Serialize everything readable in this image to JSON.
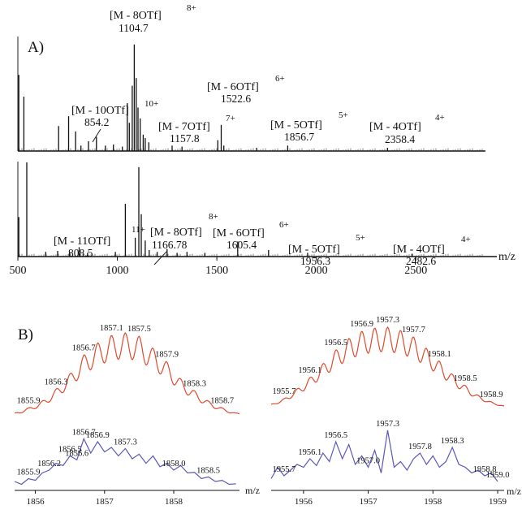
{
  "figure": {
    "panel_a_label": "A)",
    "panel_b_label": "B)"
  },
  "chart_data": [
    {
      "type": "line",
      "panel": "A-top",
      "xlim": [
        500,
        2850
      ],
      "annotations": [
        {
          "ion": "[M - 8OTf]",
          "charge": "8+",
          "value": "1104.7"
        },
        {
          "ion": "[M - 6OTf]",
          "charge": "6+",
          "value": "1522.6"
        },
        {
          "ion": "[M - 10OTf]",
          "charge": "10+",
          "value": "854.2"
        },
        {
          "ion": "[M - 7OTf]",
          "charge": "7+",
          "value": "1157.8"
        },
        {
          "ion": "[M - 5OTf]",
          "charge": "5+",
          "value": "1856.7"
        },
        {
          "ion": "[M - 4OTf]",
          "charge": "4+",
          "value": "2358.4"
        }
      ],
      "peaks": [
        {
          "x": 505,
          "y": 0.7
        },
        {
          "x": 530,
          "y": 0.5
        },
        {
          "x": 705,
          "y": 0.23
        },
        {
          "x": 755,
          "y": 0.32
        },
        {
          "x": 790,
          "y": 0.18
        },
        {
          "x": 817,
          "y": 0.05
        },
        {
          "x": 855,
          "y": 0.09
        },
        {
          "x": 895,
          "y": 0.13
        },
        {
          "x": 940,
          "y": 0.05
        },
        {
          "x": 980,
          "y": 0.06
        },
        {
          "x": 1025,
          "y": 0.04
        },
        {
          "x": 1050,
          "y": 0.44
        },
        {
          "x": 1060,
          "y": 0.26
        },
        {
          "x": 1075,
          "y": 0.6
        },
        {
          "x": 1085,
          "y": 0.98
        },
        {
          "x": 1095,
          "y": 0.67
        },
        {
          "x": 1104,
          "y": 0.4
        },
        {
          "x": 1115,
          "y": 0.3
        },
        {
          "x": 1130,
          "y": 0.15
        },
        {
          "x": 1140,
          "y": 0.12
        },
        {
          "x": 1158,
          "y": 0.08
        },
        {
          "x": 1275,
          "y": 0.05
        },
        {
          "x": 1325,
          "y": 0.04
        },
        {
          "x": 1505,
          "y": 0.1
        },
        {
          "x": 1522,
          "y": 0.24
        },
        {
          "x": 1535,
          "y": 0.05
        },
        {
          "x": 1700,
          "y": 0.03
        },
        {
          "x": 1856,
          "y": 0.05
        },
        {
          "x": 2358,
          "y": 0.03
        }
      ]
    },
    {
      "type": "line",
      "panel": "A-bottom",
      "xlim": [
        500,
        2850
      ],
      "xticks": [
        500,
        1000,
        1500,
        2000,
        2500
      ],
      "xlabel": "m/z",
      "annotations": [
        {
          "ion": "[M - 11OTf]",
          "charge": "11+",
          "value": "808.5"
        },
        {
          "ion": "[M - 8OTf]",
          "charge": "8+",
          "value": "1166.78"
        },
        {
          "ion": "[M - 6OTf]",
          "charge": "6+",
          "value": "1605.4"
        },
        {
          "ion": "[M - 5OTf]",
          "charge": "5+",
          "value": "1956.3"
        },
        {
          "ion": "[M - 4OTf]",
          "charge": "4+",
          "value": "2482.6"
        }
      ],
      "peaks": [
        {
          "x": 505,
          "y": 0.42
        },
        {
          "x": 545,
          "y": 1.0
        },
        {
          "x": 640,
          "y": 0.05
        },
        {
          "x": 700,
          "y": 0.06
        },
        {
          "x": 760,
          "y": 0.05
        },
        {
          "x": 808,
          "y": 0.1
        },
        {
          "x": 850,
          "y": 0.04
        },
        {
          "x": 990,
          "y": 0.05
        },
        {
          "x": 1040,
          "y": 0.56
        },
        {
          "x": 1090,
          "y": 0.2
        },
        {
          "x": 1108,
          "y": 0.95
        },
        {
          "x": 1120,
          "y": 0.45
        },
        {
          "x": 1140,
          "y": 0.17
        },
        {
          "x": 1160,
          "y": 0.07
        },
        {
          "x": 1200,
          "y": 0.05
        },
        {
          "x": 1250,
          "y": 0.08
        },
        {
          "x": 1300,
          "y": 0.04
        },
        {
          "x": 1350,
          "y": 0.05
        },
        {
          "x": 1440,
          "y": 0.04
        },
        {
          "x": 1605,
          "y": 0.16
        },
        {
          "x": 1760,
          "y": 0.07
        },
        {
          "x": 1956,
          "y": 0.04
        },
        {
          "x": 2482,
          "y": 0.03
        }
      ]
    },
    {
      "type": "line",
      "panel": "B-left",
      "xlim": [
        1855.7,
        1858.95
      ],
      "xticks": [
        1856,
        1857,
        1858
      ],
      "xlabel": "m/z",
      "series": [
        {
          "color": "#e04a2e",
          "values": [
            [
              1855.7,
              0.06
            ],
            [
              1855.9,
              0.12
            ],
            [
              1856.1,
              0.2
            ],
            [
              1856.3,
              0.34
            ],
            [
              1856.5,
              0.52
            ],
            [
              1856.7,
              0.74
            ],
            [
              1856.9,
              0.88
            ],
            [
              1857.1,
              0.97
            ],
            [
              1857.3,
              1.0
            ],
            [
              1857.5,
              0.96
            ],
            [
              1857.7,
              0.82
            ],
            [
              1857.9,
              0.66
            ],
            [
              1858.1,
              0.46
            ],
            [
              1858.3,
              0.32
            ],
            [
              1858.5,
              0.2
            ],
            [
              1858.7,
              0.12
            ],
            [
              1858.9,
              0.06
            ]
          ],
          "peak_labels": [
            "1855.9",
            "1856.3",
            "1856.7",
            "1857.1",
            "1857.5",
            "1857.9",
            "1858.3",
            "1858.7"
          ]
        },
        {
          "color": "#5a57b8",
          "values": [
            [
              1855.7,
              0.1
            ],
            [
              1855.8,
              0.05
            ],
            [
              1855.9,
              0.15
            ],
            [
              1856.0,
              0.12
            ],
            [
              1856.1,
              0.25
            ],
            [
              1856.2,
              0.3
            ],
            [
              1856.3,
              0.42
            ],
            [
              1856.4,
              0.38
            ],
            [
              1856.5,
              0.55
            ],
            [
              1856.6,
              0.48
            ],
            [
              1856.7,
              0.85
            ],
            [
              1856.8,
              0.6
            ],
            [
              1856.9,
              0.8
            ],
            [
              1857.0,
              0.62
            ],
            [
              1857.1,
              0.7
            ],
            [
              1857.2,
              0.55
            ],
            [
              1857.3,
              0.68
            ],
            [
              1857.4,
              0.5
            ],
            [
              1857.5,
              0.58
            ],
            [
              1857.6,
              0.42
            ],
            [
              1857.7,
              0.55
            ],
            [
              1857.8,
              0.36
            ],
            [
              1857.9,
              0.42
            ],
            [
              1858.0,
              0.3
            ],
            [
              1858.1,
              0.38
            ],
            [
              1858.2,
              0.25
            ],
            [
              1858.3,
              0.26
            ],
            [
              1858.4,
              0.15
            ],
            [
              1858.5,
              0.18
            ],
            [
              1858.6,
              0.1
            ],
            [
              1858.7,
              0.12
            ],
            [
              1858.8,
              0.05
            ],
            [
              1858.9,
              0.06
            ]
          ],
          "peak_labels": [
            "1855.9",
            "1856.2",
            "1856.5",
            "1856.6",
            "1856.9",
            "1857.3",
            "1856.7",
            "1858.0",
            "1858.5"
          ]
        }
      ]
    },
    {
      "type": "line",
      "panel": "B-right",
      "xlim": [
        1955.5,
        1959.1
      ],
      "xticks": [
        1956,
        1957,
        1958,
        1959
      ],
      "xlabel": "m/z",
      "series": [
        {
          "color": "#e04a2e",
          "values": [
            [
              1955.5,
              0.05
            ],
            [
              1955.7,
              0.12
            ],
            [
              1955.9,
              0.24
            ],
            [
              1956.1,
              0.38
            ],
            [
              1956.3,
              0.55
            ],
            [
              1956.5,
              0.72
            ],
            [
              1956.7,
              0.86
            ],
            [
              1956.9,
              0.95
            ],
            [
              1957.1,
              0.99
            ],
            [
              1957.3,
              1.0
            ],
            [
              1957.5,
              0.96
            ],
            [
              1957.7,
              0.88
            ],
            [
              1957.9,
              0.74
            ],
            [
              1958.1,
              0.58
            ],
            [
              1958.3,
              0.42
            ],
            [
              1958.5,
              0.28
            ],
            [
              1958.7,
              0.16
            ],
            [
              1958.9,
              0.08
            ],
            [
              1959.1,
              0.03
            ]
          ],
          "peak_labels": [
            "1955.7",
            "1956.1",
            "1956.5",
            "1956.9",
            "1957.3",
            "1957.7",
            "1958.1",
            "1958.5",
            "1958.9"
          ]
        },
        {
          "color": "#5a57b8",
          "values": [
            [
              1955.5,
              0.15
            ],
            [
              1955.6,
              0.35
            ],
            [
              1955.7,
              0.2
            ],
            [
              1955.8,
              0.3
            ],
            [
              1955.9,
              0.4
            ],
            [
              1956.0,
              0.35
            ],
            [
              1956.1,
              0.5
            ],
            [
              1956.2,
              0.38
            ],
            [
              1956.3,
              0.6
            ],
            [
              1956.4,
              0.45
            ],
            [
              1956.5,
              0.8
            ],
            [
              1956.6,
              0.5
            ],
            [
              1956.7,
              0.75
            ],
            [
              1956.8,
              0.4
            ],
            [
              1956.9,
              0.55
            ],
            [
              1957.0,
              0.35
            ],
            [
              1957.1,
              0.65
            ],
            [
              1957.2,
              0.25
            ],
            [
              1957.3,
              1.0
            ],
            [
              1957.4,
              0.35
            ],
            [
              1957.5,
              0.45
            ],
            [
              1957.6,
              0.3
            ],
            [
              1957.7,
              0.5
            ],
            [
              1957.8,
              0.6
            ],
            [
              1957.9,
              0.4
            ],
            [
              1958.0,
              0.55
            ],
            [
              1958.1,
              0.35
            ],
            [
              1958.2,
              0.45
            ],
            [
              1958.3,
              0.7
            ],
            [
              1958.4,
              0.4
            ],
            [
              1958.5,
              0.35
            ],
            [
              1958.6,
              0.25
            ],
            [
              1958.7,
              0.3
            ],
            [
              1958.8,
              0.2
            ],
            [
              1958.9,
              0.25
            ],
            [
              1959.0,
              0.1
            ]
          ],
          "peak_labels": [
            "1955.7",
            "1956.1",
            "1956.5",
            "1957.0",
            "1957.3",
            "1957.8",
            "1958.3",
            "1958.8",
            "1959.0"
          ]
        }
      ]
    }
  ]
}
